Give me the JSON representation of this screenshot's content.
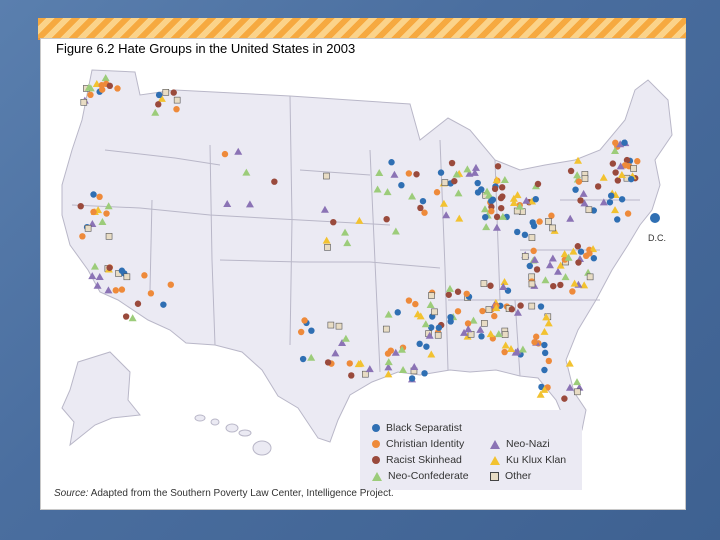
{
  "slide": {
    "title": "Figure 6.2 Hate Groups in the United States in 2003",
    "source_label": "Source:",
    "source_text": "Adapted from the Southern Poverty Law Center, Intelligence Project.",
    "dc_label": "D.C."
  },
  "colors": {
    "black_separatist": "#2f6fb3",
    "christian_identity": "#ee8a3a",
    "racist_skinhead": "#9a4a3c",
    "neo_confederate": "#9ccc7a",
    "neo_nazi": "#8b73b5",
    "kkk": "#f2c230",
    "other_fill": "#e8dcc4",
    "land": "#ebeaf3",
    "border": "#b9b7c8"
  },
  "legend": {
    "black_separatist": "Black Separatist",
    "christian_identity": "Christian Identity",
    "racist_skinhead": "Racist Skinhead",
    "neo_confederate": "Neo-Confederate",
    "neo_nazi": "Neo-Nazi",
    "kkk": "Ku Klux Klan",
    "other": "Other"
  }
}
